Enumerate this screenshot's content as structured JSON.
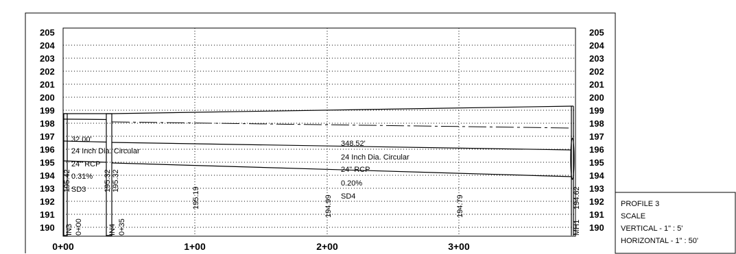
{
  "elevation_labels": [
    "190",
    "191",
    "192",
    "193",
    "194",
    "195",
    "196",
    "197",
    "198",
    "199",
    "200",
    "201",
    "202",
    "203",
    "204",
    "205"
  ],
  "station_labels": [
    "0+00",
    "1+00",
    "2+00",
    "3+00"
  ],
  "pipe_left": {
    "length": "32.00'",
    "size": "24 Inch Dia. Circular",
    "material": "24\" RCP",
    "slope": "0.31%",
    "name": "SD3"
  },
  "pipe_right": {
    "length": "348.52'",
    "size": "24 Inch Dia. Circular",
    "material": "24\" RCP",
    "slope": "0.20%",
    "name": "SD4"
  },
  "structures": [
    {
      "name": "IN3",
      "station": "0+00",
      "invert": "195.42"
    },
    {
      "name": "IN4",
      "station": "0+35",
      "invert_in": "195.32",
      "invert_out": "195.32"
    },
    {
      "name": "MH1",
      "invert": "194.62"
    }
  ],
  "ground_readouts": [
    "195.19",
    "194.99",
    "194.79"
  ],
  "title_block": {
    "title": "PROFILE 3",
    "scale": "SCALE",
    "vertical": "VERTICAL - 1\" : 5'",
    "horizontal": "HORIZONTAL - 1\" : 50'"
  }
}
